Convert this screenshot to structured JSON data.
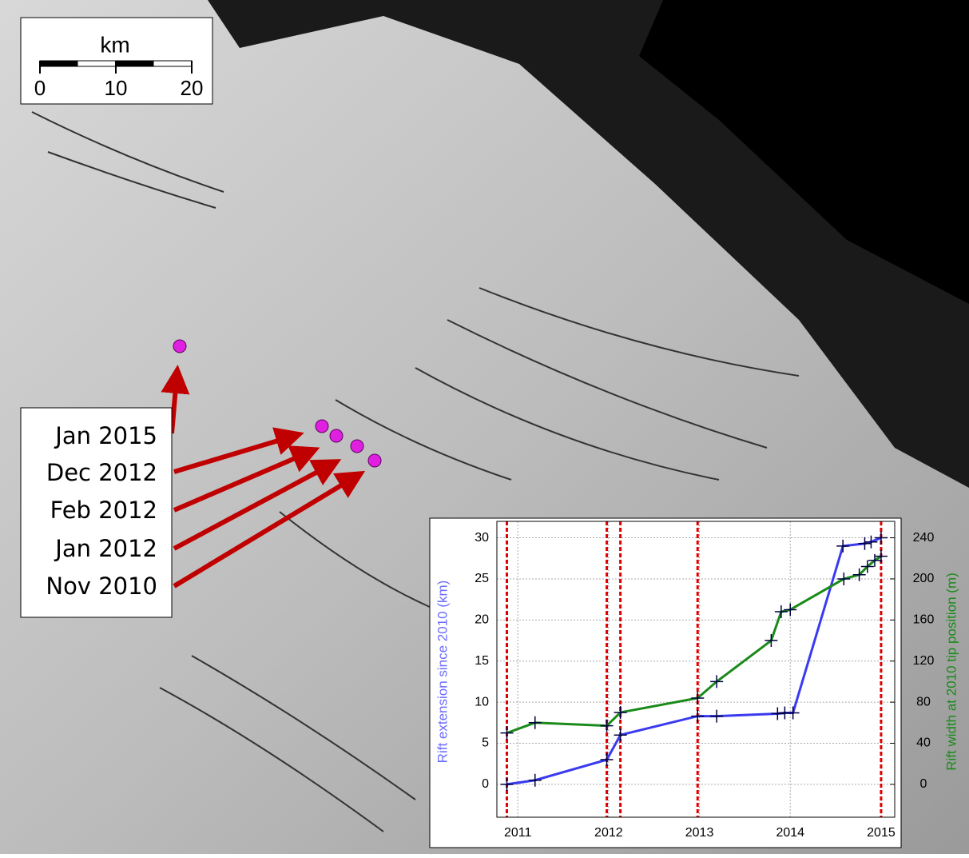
{
  "scale_bar": {
    "unit": "km",
    "ticks": [
      0,
      10,
      20
    ]
  },
  "date_labels": [
    "Jan 2015",
    "Dec 2012",
    "Feb 2012",
    "Jan 2012",
    "Nov 2010"
  ],
  "chart_data": {
    "type": "line",
    "y_label": "Rift extension since 2010 (km)",
    "y2_label": "Rift width at 2010 tip position (m)",
    "xlim": [
      2010.77,
      2015.15
    ],
    "xticks": [
      2011,
      2012,
      2013,
      2014,
      2015
    ],
    "ylim": [
      -4,
      32
    ],
    "yticks": [
      0,
      5,
      10,
      15,
      20,
      25,
      30
    ],
    "y2lim": [
      -32,
      256
    ],
    "y2ticks": [
      0,
      40,
      80,
      120,
      160,
      200,
      240
    ],
    "grid": true,
    "vlines": [
      2010.88,
      2011.98,
      2012.13,
      2012.98,
      2015.0
    ],
    "vline_color": "#e00000",
    "series": [
      {
        "name": "Rift extension",
        "color": "#3a3af0",
        "axis": "y",
        "x": [
          2010.88,
          2011.19,
          2011.98,
          2012.13,
          2012.98,
          2013.19,
          2013.86,
          2013.94,
          2014.03,
          2014.58,
          2014.82,
          2014.89,
          2015.0
        ],
        "values": [
          0,
          0.5,
          3,
          6,
          8.3,
          8.3,
          8.6,
          8.7,
          8.7,
          29,
          29.3,
          29.5,
          30
        ]
      },
      {
        "name": "Rift width",
        "color": "#1a8a1a",
        "axis": "y2",
        "x": [
          2010.88,
          2011.19,
          2011.98,
          2012.13,
          2012.98,
          2013.19,
          2013.79,
          2013.9,
          2014.0,
          2014.59,
          2014.76,
          2014.85,
          2014.93,
          2015.0
        ],
        "values": [
          50,
          60,
          57,
          70,
          84,
          100,
          140,
          168,
          170,
          200,
          204,
          212,
          218,
          222
        ]
      }
    ]
  }
}
